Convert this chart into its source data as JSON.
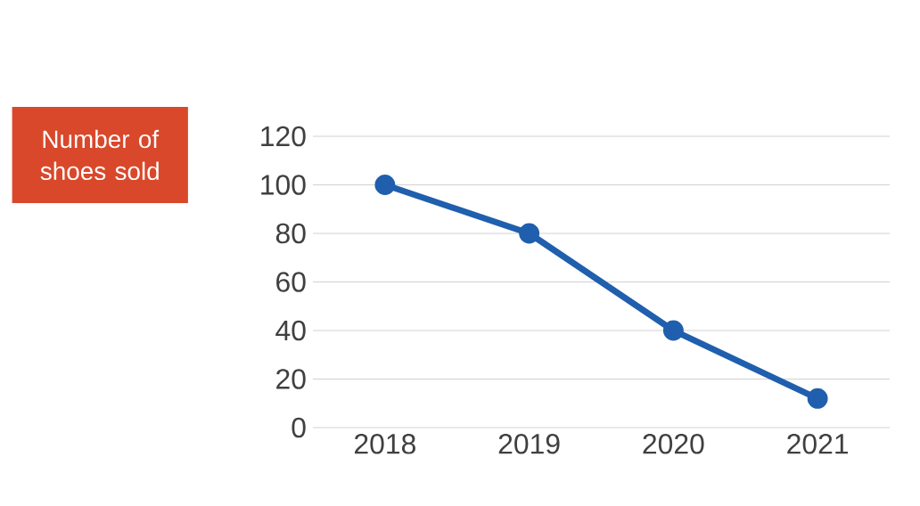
{
  "chart_data": {
    "type": "line",
    "ylabel": "Number of shoes sold",
    "categories": [
      "2018",
      "2019",
      "2020",
      "2021"
    ],
    "values": [
      100,
      80,
      40,
      12
    ],
    "color": "#1f5fad",
    "ylim": [
      0,
      120
    ],
    "yticks": [
      0,
      20,
      40,
      60,
      80,
      100,
      120
    ],
    "grid": "y",
    "marker": "circle"
  }
}
